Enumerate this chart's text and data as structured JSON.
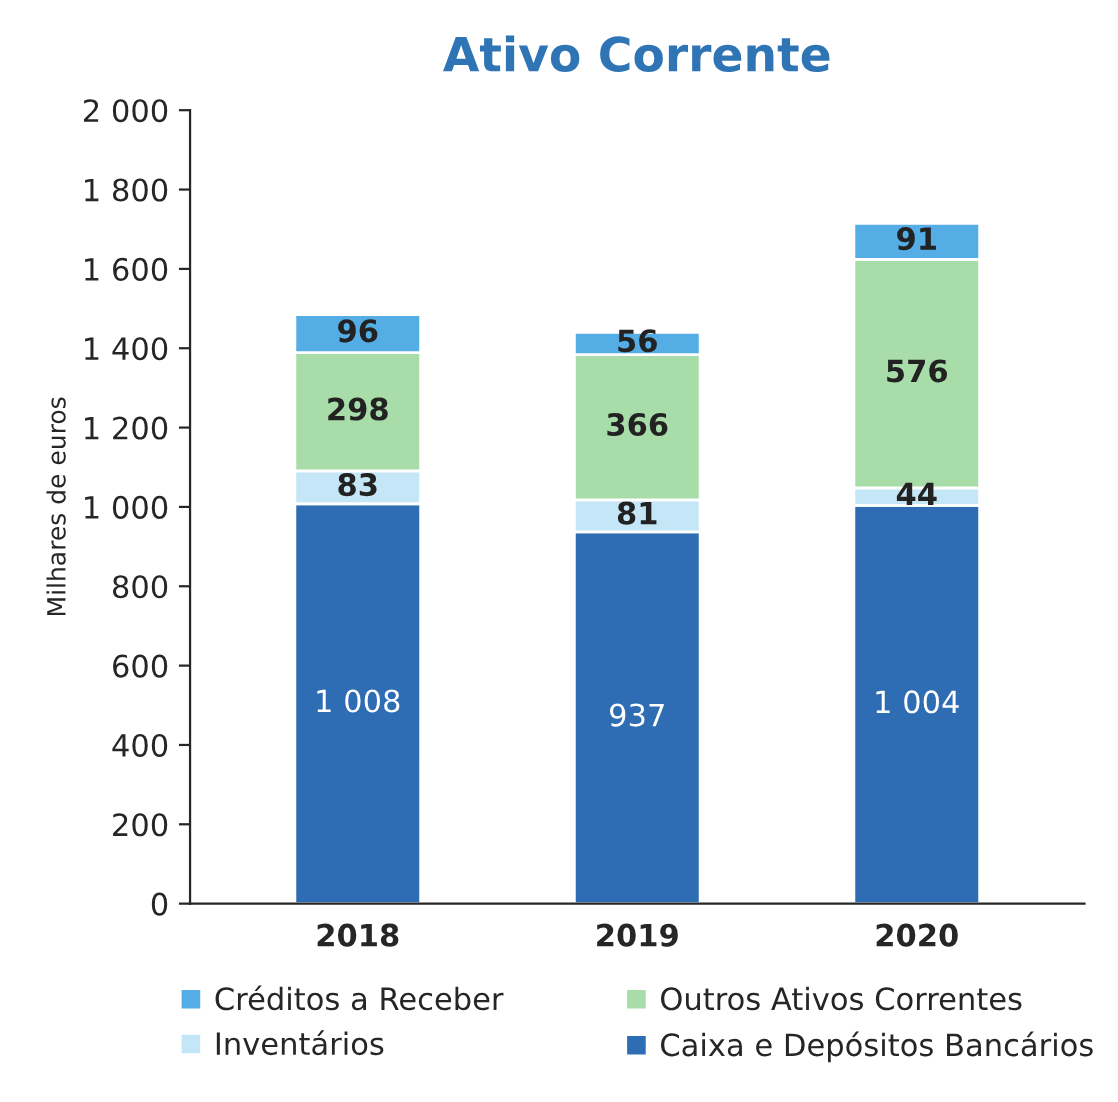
{
  "chart_data": {
    "type": "bar",
    "title": "Ativo Corrente",
    "ylabel": "Milhares de euros",
    "categories": [
      "2018",
      "2019",
      "2020"
    ],
    "stacked": true,
    "legend": "bottom",
    "grid": false,
    "ylim": [
      0,
      2000
    ],
    "yticks": [
      0,
      200,
      400,
      600,
      800,
      {
        "value": 1000,
        "label": "1 000"
      },
      {
        "value": 1200,
        "label": "1 200"
      },
      {
        "value": 1400,
        "label": "1 400"
      },
      {
        "value": 1600,
        "label": "1 600"
      },
      {
        "value": 1800,
        "label": "1 800"
      },
      {
        "value": 2000,
        "label": "2 000"
      }
    ],
    "series": [
      {
        "name": "Caixa e Depósitos Bancários",
        "color": "#2e6db4",
        "values": [
          1008,
          937,
          1004
        ],
        "value_labels": [
          "1 008",
          "937",
          "1 004"
        ]
      },
      {
        "name": "Inventários",
        "color": "#c5e6f7",
        "values": [
          83,
          81,
          44
        ],
        "value_labels": [
          "83",
          "81",
          "44"
        ]
      },
      {
        "name": "Outros Ativos Correntes",
        "color": "#a8dca8",
        "values": [
          298,
          366,
          576
        ],
        "value_labels": [
          "298",
          "366",
          "576"
        ]
      },
      {
        "name": "Créditos a Receber",
        "color": "#55ade6",
        "values": [
          96,
          56,
          91
        ],
        "value_labels": [
          "96",
          "56",
          "91"
        ]
      }
    ]
  }
}
